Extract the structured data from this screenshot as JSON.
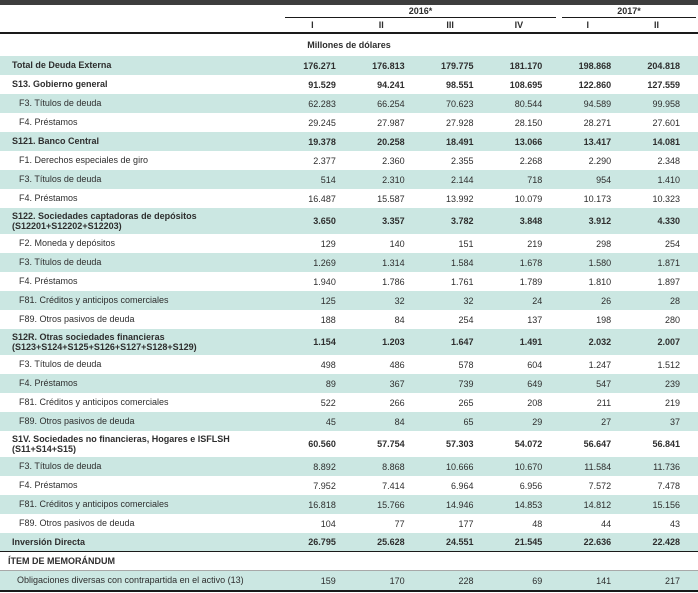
{
  "colors": {
    "row_shade": "#cbe7e2",
    "top_bar": "#3d3d3d",
    "rule": "#1a1a1a"
  },
  "header": {
    "year_groups": [
      {
        "label": "2016*",
        "cols": 4
      },
      {
        "label": "2017*",
        "cols": 2
      }
    ],
    "quarter_labels": [
      "I",
      "II",
      "III",
      "IV",
      "I",
      "II"
    ],
    "units_label": "Millones de dólares"
  },
  "table": {
    "rows": [
      {
        "label": "Total de Deuda Externa",
        "bold": true,
        "shaded": true,
        "indent": false,
        "values": [
          "176.271",
          "176.813",
          "179.775",
          "181.170",
          "198.868",
          "204.818"
        ]
      },
      {
        "label": "S13. Gobierno general",
        "bold": true,
        "shaded": false,
        "indent": false,
        "values": [
          "91.529",
          "94.241",
          "98.551",
          "108.695",
          "122.860",
          "127.559"
        ]
      },
      {
        "label": "F3. Títulos de deuda",
        "bold": false,
        "shaded": true,
        "indent": true,
        "values": [
          "62.283",
          "66.254",
          "70.623",
          "80.544",
          "94.589",
          "99.958"
        ]
      },
      {
        "label": "F4. Préstamos",
        "bold": false,
        "shaded": false,
        "indent": true,
        "values": [
          "29.245",
          "27.987",
          "27.928",
          "28.150",
          "28.271",
          "27.601"
        ]
      },
      {
        "label": "S121. Banco Central",
        "bold": true,
        "shaded": true,
        "indent": false,
        "values": [
          "19.378",
          "20.258",
          "18.491",
          "13.066",
          "13.417",
          "14.081"
        ]
      },
      {
        "label": "F1. Derechos especiales de giro",
        "bold": false,
        "shaded": false,
        "indent": true,
        "values": [
          "2.377",
          "2.360",
          "2.355",
          "2.268",
          "2.290",
          "2.348"
        ]
      },
      {
        "label": "F3. Títulos de deuda",
        "bold": false,
        "shaded": true,
        "indent": true,
        "values": [
          "514",
          "2.310",
          "2.144",
          "718",
          "954",
          "1.410"
        ]
      },
      {
        "label": "F4. Préstamos",
        "bold": false,
        "shaded": false,
        "indent": true,
        "values": [
          "16.487",
          "15.587",
          "13.992",
          "10.079",
          "10.173",
          "10.323"
        ]
      },
      {
        "label": "S122. Sociedades captadoras de depósitos",
        "sub": "(S12201+S12202+S12203)",
        "bold": true,
        "shaded": true,
        "indent": false,
        "values": [
          "3.650",
          "3.357",
          "3.782",
          "3.848",
          "3.912",
          "4.330"
        ]
      },
      {
        "label": "F2. Moneda y depósitos",
        "bold": false,
        "shaded": false,
        "indent": true,
        "values": [
          "129",
          "140",
          "151",
          "219",
          "298",
          "254"
        ]
      },
      {
        "label": "F3. Títulos de deuda",
        "bold": false,
        "shaded": true,
        "indent": true,
        "values": [
          "1.269",
          "1.314",
          "1.584",
          "1.678",
          "1.580",
          "1.871"
        ]
      },
      {
        "label": "F4. Préstamos",
        "bold": false,
        "shaded": false,
        "indent": true,
        "values": [
          "1.940",
          "1.786",
          "1.761",
          "1.789",
          "1.810",
          "1.897"
        ]
      },
      {
        "label": "F81. Créditos y anticipos comerciales",
        "bold": false,
        "shaded": true,
        "indent": true,
        "values": [
          "125",
          "32",
          "32",
          "24",
          "26",
          "28"
        ]
      },
      {
        "label": "F89. Otros pasivos de deuda",
        "bold": false,
        "shaded": false,
        "indent": true,
        "values": [
          "188",
          "84",
          "254",
          "137",
          "198",
          "280"
        ]
      },
      {
        "label": "S12R. Otras sociedades financieras",
        "sub": "(S123+S124+S125+S126+S127+S128+S129)",
        "bold": true,
        "shaded": true,
        "indent": false,
        "values": [
          "1.154",
          "1.203",
          "1.647",
          "1.491",
          "2.032",
          "2.007"
        ]
      },
      {
        "label": "F3. Títulos de deuda",
        "bold": false,
        "shaded": false,
        "indent": true,
        "values": [
          "498",
          "486",
          "578",
          "604",
          "1.247",
          "1.512"
        ]
      },
      {
        "label": "F4. Préstamos",
        "bold": false,
        "shaded": true,
        "indent": true,
        "values": [
          "89",
          "367",
          "739",
          "649",
          "547",
          "239"
        ]
      },
      {
        "label": "F81. Créditos y anticipos comerciales",
        "bold": false,
        "shaded": false,
        "indent": true,
        "values": [
          "522",
          "266",
          "265",
          "208",
          "211",
          "219"
        ]
      },
      {
        "label": "F89. Otros pasivos de deuda",
        "bold": false,
        "shaded": true,
        "indent": true,
        "values": [
          "45",
          "84",
          "65",
          "29",
          "27",
          "37"
        ]
      },
      {
        "label": "S1V. Sociedades no financieras, Hogares e ISFLSH",
        "sub": "(S11+S14+S15)",
        "bold": true,
        "shaded": false,
        "indent": false,
        "values": [
          "60.560",
          "57.754",
          "57.303",
          "54.072",
          "56.647",
          "56.841"
        ]
      },
      {
        "label": "F3. Títulos de deuda",
        "bold": false,
        "shaded": true,
        "indent": true,
        "values": [
          "8.892",
          "8.868",
          "10.666",
          "10.670",
          "11.584",
          "11.736"
        ]
      },
      {
        "label": "F4. Préstamos",
        "bold": false,
        "shaded": false,
        "indent": true,
        "values": [
          "7.952",
          "7.414",
          "6.964",
          "6.956",
          "7.572",
          "7.478"
        ]
      },
      {
        "label": "F81. Créditos y anticipos comerciales",
        "bold": false,
        "shaded": true,
        "indent": true,
        "values": [
          "16.818",
          "15.766",
          "14.946",
          "14.853",
          "14.812",
          "15.156"
        ]
      },
      {
        "label": "F89. Otros pasivos de deuda",
        "bold": false,
        "shaded": false,
        "indent": true,
        "values": [
          "104",
          "77",
          "177",
          "48",
          "44",
          "43"
        ]
      },
      {
        "label": "Inversión Directa",
        "bold": true,
        "shaded": true,
        "indent": false,
        "rule_below": "thick",
        "values": [
          "26.795",
          "25.628",
          "24.551",
          "21.545",
          "22.636",
          "22.428"
        ]
      },
      {
        "label": "ÍTEM DE MEMORÁNDUM",
        "bold": true,
        "shaded": false,
        "indent": false,
        "memo_heading": true,
        "rule_below": "thin",
        "values": [
          "",
          "",
          "",
          "",
          "",
          ""
        ]
      },
      {
        "label": "Obligaciones diversas con contrapartida en el activo (13)",
        "bold": false,
        "shaded": true,
        "indent": false,
        "memo_item": true,
        "values": [
          "159",
          "170",
          "228",
          "69",
          "141",
          "217"
        ]
      }
    ]
  }
}
